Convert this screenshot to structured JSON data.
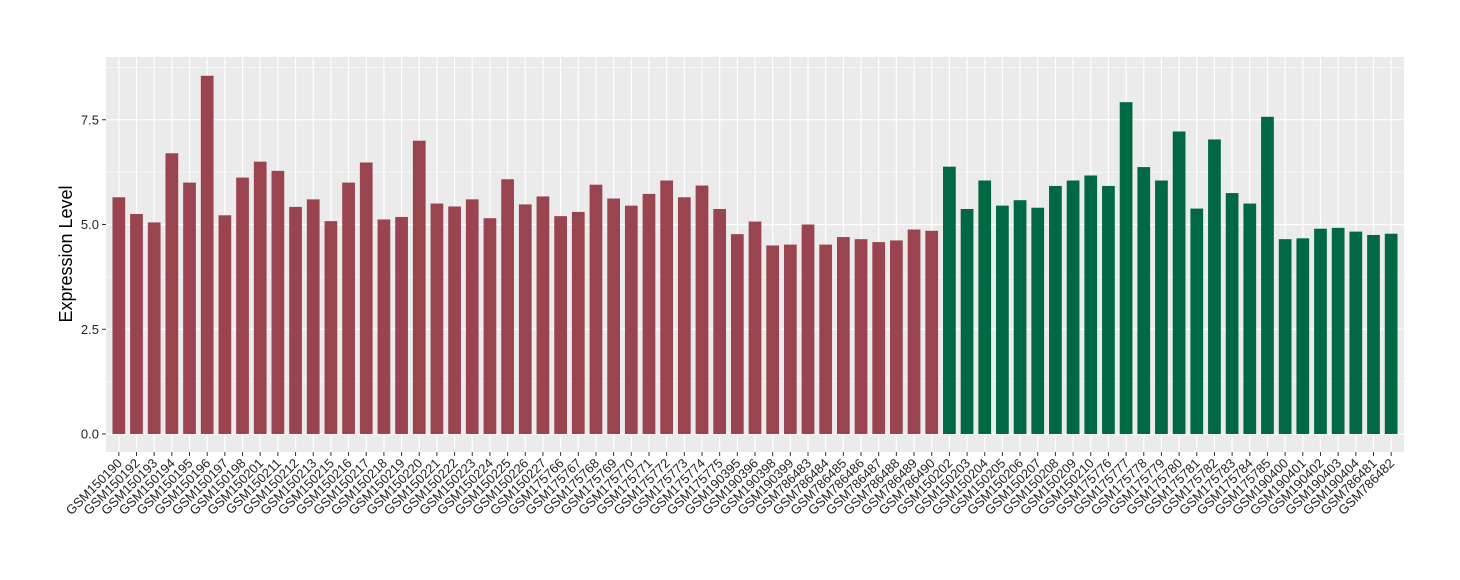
{
  "colors": {
    "panel_background": "#EBEBEB",
    "gridline": "#FFFFFF",
    "series_1": "#9A4450",
    "series_2": "#006843"
  },
  "chart_data": {
    "type": "bar",
    "title": "",
    "xlabel": "",
    "ylabel": "Expression Level",
    "ylim": [
      0,
      8.9
    ],
    "yticks": [
      0.0,
      2.5,
      5.0,
      7.5
    ],
    "ytick_labels": [
      "0.0",
      "2.5",
      "5.0",
      "7.5"
    ],
    "grid": true,
    "legend": "none",
    "categories": [
      "GSM150190",
      "GSM150192",
      "GSM150193",
      "GSM150194",
      "GSM150195",
      "GSM150196",
      "GSM150197",
      "GSM150198",
      "GSM150201",
      "GSM150211",
      "GSM150212",
      "GSM150213",
      "GSM150215",
      "GSM150216",
      "GSM150217",
      "GSM150218",
      "GSM150219",
      "GSM150220",
      "GSM150221",
      "GSM150222",
      "GSM150223",
      "GSM150224",
      "GSM150225",
      "GSM150226",
      "GSM150227",
      "GSM175766",
      "GSM175767",
      "GSM175768",
      "GSM175769",
      "GSM175770",
      "GSM175771",
      "GSM175772",
      "GSM175773",
      "GSM175774",
      "GSM175775",
      "GSM190395",
      "GSM190396",
      "GSM190398",
      "GSM190399",
      "GSM786483",
      "GSM786484",
      "GSM786485",
      "GSM786486",
      "GSM786487",
      "GSM786488",
      "GSM786489",
      "GSM786490",
      "GSM150202",
      "GSM150203",
      "GSM150204",
      "GSM150205",
      "GSM150206",
      "GSM150207",
      "GSM150208",
      "GSM150209",
      "GSM150210",
      "GSM175776",
      "GSM175777",
      "GSM175778",
      "GSM175779",
      "GSM175780",
      "GSM175781",
      "GSM175782",
      "GSM175783",
      "GSM175784",
      "GSM175785",
      "GSM190400",
      "GSM190401",
      "GSM190402",
      "GSM190403",
      "GSM190404",
      "GSM786481",
      "GSM786482"
    ],
    "values": [
      5.65,
      5.25,
      5.05,
      6.7,
      6.0,
      8.55,
      5.22,
      6.12,
      6.5,
      6.28,
      5.42,
      5.6,
      5.08,
      6.0,
      6.48,
      5.12,
      5.18,
      7.0,
      5.5,
      5.43,
      5.6,
      5.15,
      6.08,
      5.48,
      5.67,
      5.2,
      5.3,
      5.95,
      5.62,
      5.45,
      5.73,
      6.05,
      5.65,
      5.93,
      5.37,
      4.77,
      5.07,
      4.5,
      4.52,
      5.0,
      4.52,
      4.7,
      4.65,
      4.58,
      4.62,
      4.88,
      4.85,
      6.38,
      5.37,
      6.05,
      5.45,
      5.58,
      5.4,
      5.92,
      6.05,
      6.17,
      5.92,
      7.92,
      6.37,
      6.05,
      7.22,
      5.38,
      7.03,
      5.75,
      5.5,
      7.57,
      4.65,
      4.67,
      4.9,
      4.92,
      4.83,
      4.75,
      4.78
    ],
    "group_colors": [
      "series_1",
      "series_1",
      "series_1",
      "series_1",
      "series_1",
      "series_1",
      "series_1",
      "series_1",
      "series_1",
      "series_1",
      "series_1",
      "series_1",
      "series_1",
      "series_1",
      "series_1",
      "series_1",
      "series_1",
      "series_1",
      "series_1",
      "series_1",
      "series_1",
      "series_1",
      "series_1",
      "series_1",
      "series_1",
      "series_1",
      "series_1",
      "series_1",
      "series_1",
      "series_1",
      "series_1",
      "series_1",
      "series_1",
      "series_1",
      "series_1",
      "series_1",
      "series_1",
      "series_1",
      "series_1",
      "series_1",
      "series_1",
      "series_1",
      "series_1",
      "series_1",
      "series_1",
      "series_1",
      "series_1",
      "series_2",
      "series_2",
      "series_2",
      "series_2",
      "series_2",
      "series_2",
      "series_2",
      "series_2",
      "series_2",
      "series_2",
      "series_2",
      "series_2",
      "series_2",
      "series_2",
      "series_2",
      "series_2",
      "series_2",
      "series_2",
      "series_2",
      "series_2",
      "series_2",
      "series_2",
      "series_2",
      "series_2",
      "series_2",
      "series_2"
    ]
  }
}
